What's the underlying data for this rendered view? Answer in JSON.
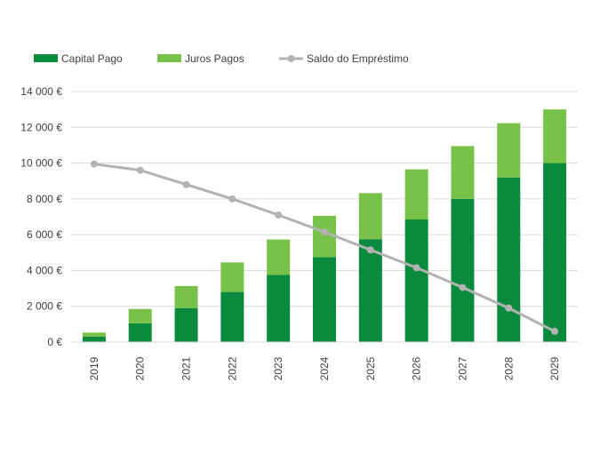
{
  "chart_data": {
    "type": "bar",
    "stacked": true,
    "categories": [
      "2019",
      "2020",
      "2021",
      "2022",
      "2023",
      "2024",
      "2025",
      "2026",
      "2027",
      "2028",
      "2029"
    ],
    "series": [
      {
        "name": "Capital Pago",
        "kind": "bar",
        "color": "#0a8a3c",
        "values": [
          300,
          1050,
          1900,
          2800,
          3750,
          4750,
          5750,
          6850,
          8000,
          9200,
          10000
        ]
      },
      {
        "name": "Juros Pagos",
        "kind": "bar",
        "color": "#78c24a",
        "values": [
          230,
          800,
          1230,
          1650,
          1980,
          2300,
          2570,
          2800,
          2950,
          3030,
          3000
        ]
      },
      {
        "name": "Saldo do Empréstimo",
        "kind": "line",
        "color": "#b3b3b3",
        "values": [
          9950,
          9600,
          8800,
          8000,
          7100,
          6150,
          5150,
          4150,
          3050,
          1900,
          600
        ]
      }
    ],
    "y_ticks": [
      "0 €",
      "2 000 €",
      "4 000 €",
      "6 000 €",
      "8 000 €",
      "10 000 €",
      "12 000 €",
      "14 000 €"
    ],
    "ylim": [
      0,
      14000
    ],
    "y_tick_step": 2000,
    "grid": true,
    "legend_position": "top-left",
    "title": "",
    "xlabel": "",
    "ylabel": ""
  }
}
